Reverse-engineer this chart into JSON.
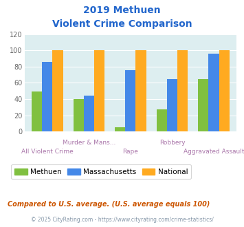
{
  "title_line1": "2019 Methuen",
  "title_line2": "Violent Crime Comparison",
  "categories": [
    "All Violent Crime",
    "Murder & Mans...",
    "Rape",
    "Robbery",
    "Aggravated Assault"
  ],
  "methuen": [
    49,
    40,
    5,
    27,
    65
  ],
  "massachusetts": [
    86,
    44,
    76,
    65,
    96
  ],
  "national": [
    100,
    100,
    100,
    100,
    100
  ],
  "color_methuen": "#80c040",
  "color_massachusetts": "#4488e8",
  "color_national": "#ffaa20",
  "ylim": [
    0,
    120
  ],
  "yticks": [
    0,
    20,
    40,
    60,
    80,
    100,
    120
  ],
  "footnote1": "Compared to U.S. average. (U.S. average equals 100)",
  "footnote2": "© 2025 CityRating.com - https://www.cityrating.com/crime-statistics/",
  "bg_color": "#ddeef0",
  "title_color": "#2266cc",
  "xticklabel_color": "#aa77aa",
  "footnote1_color": "#cc5500",
  "footnote2_color": "#8899aa",
  "legend_labels": [
    "Methuen",
    "Massachusetts",
    "National"
  ]
}
